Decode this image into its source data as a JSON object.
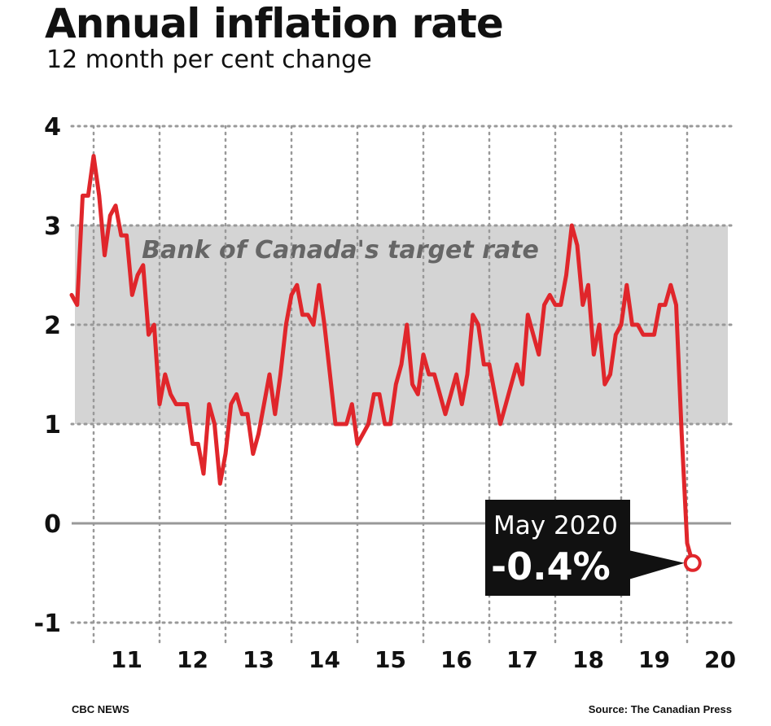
{
  "title": "Annual inflation rate",
  "subtitle": "12 month per cent change",
  "credit": "CBC NEWS",
  "source": "Source: The Canadian Press",
  "colors": {
    "line": "#e0262b",
    "band": "#d4d4d4",
    "grid": "#999999",
    "callout_bg": "#111111",
    "callout_text": "#ffffff"
  },
  "chart_data": {
    "type": "line",
    "title": "Annual inflation rate",
    "subtitle": "12 month per cent change",
    "xlabel": "",
    "ylabel": "",
    "ylim": [
      -1,
      4
    ],
    "yticks": [
      4,
      3,
      2,
      1,
      0,
      -1
    ],
    "x_start": "2010-09",
    "x_tick_labels": [
      "11",
      "12",
      "13",
      "14",
      "15",
      "16",
      "17",
      "18",
      "19",
      "20"
    ],
    "band": {
      "from": 1,
      "to": 3,
      "label": "Bank of Canada's target rate"
    },
    "annotation": {
      "label": "May 2020",
      "value_label": "-0.4%",
      "value": -0.4
    },
    "grid": true,
    "legend": "none",
    "values": [
      2.3,
      2.2,
      3.3,
      3.3,
      3.7,
      3.3,
      2.7,
      3.1,
      3.2,
      2.9,
      2.9,
      2.3,
      2.5,
      2.6,
      1.9,
      2.0,
      1.2,
      1.5,
      1.3,
      1.2,
      1.2,
      1.2,
      0.8,
      0.8,
      0.5,
      1.2,
      1.0,
      0.4,
      0.7,
      1.2,
      1.3,
      1.1,
      1.1,
      0.7,
      0.9,
      1.2,
      1.5,
      1.1,
      1.5,
      2.0,
      2.3,
      2.4,
      2.1,
      2.1,
      2.0,
      2.4,
      2.0,
      1.5,
      1.0,
      1.0,
      1.0,
      1.2,
      0.8,
      0.9,
      1.0,
      1.3,
      1.3,
      1.0,
      1.0,
      1.4,
      1.6,
      2.0,
      1.4,
      1.3,
      1.7,
      1.5,
      1.5,
      1.3,
      1.1,
      1.3,
      1.5,
      1.2,
      1.5,
      2.1,
      2.0,
      1.6,
      1.6,
      1.3,
      1.0,
      1.2,
      1.4,
      1.6,
      1.4,
      2.1,
      1.9,
      1.7,
      2.2,
      2.3,
      2.2,
      2.2,
      2.5,
      3.0,
      2.8,
      2.2,
      2.4,
      1.7,
      2.0,
      1.4,
      1.5,
      1.9,
      2.0,
      2.4,
      2.0,
      2.0,
      1.9,
      1.9,
      1.9,
      2.2,
      2.2,
      2.4,
      2.2,
      0.9,
      -0.2,
      -0.4
    ]
  }
}
